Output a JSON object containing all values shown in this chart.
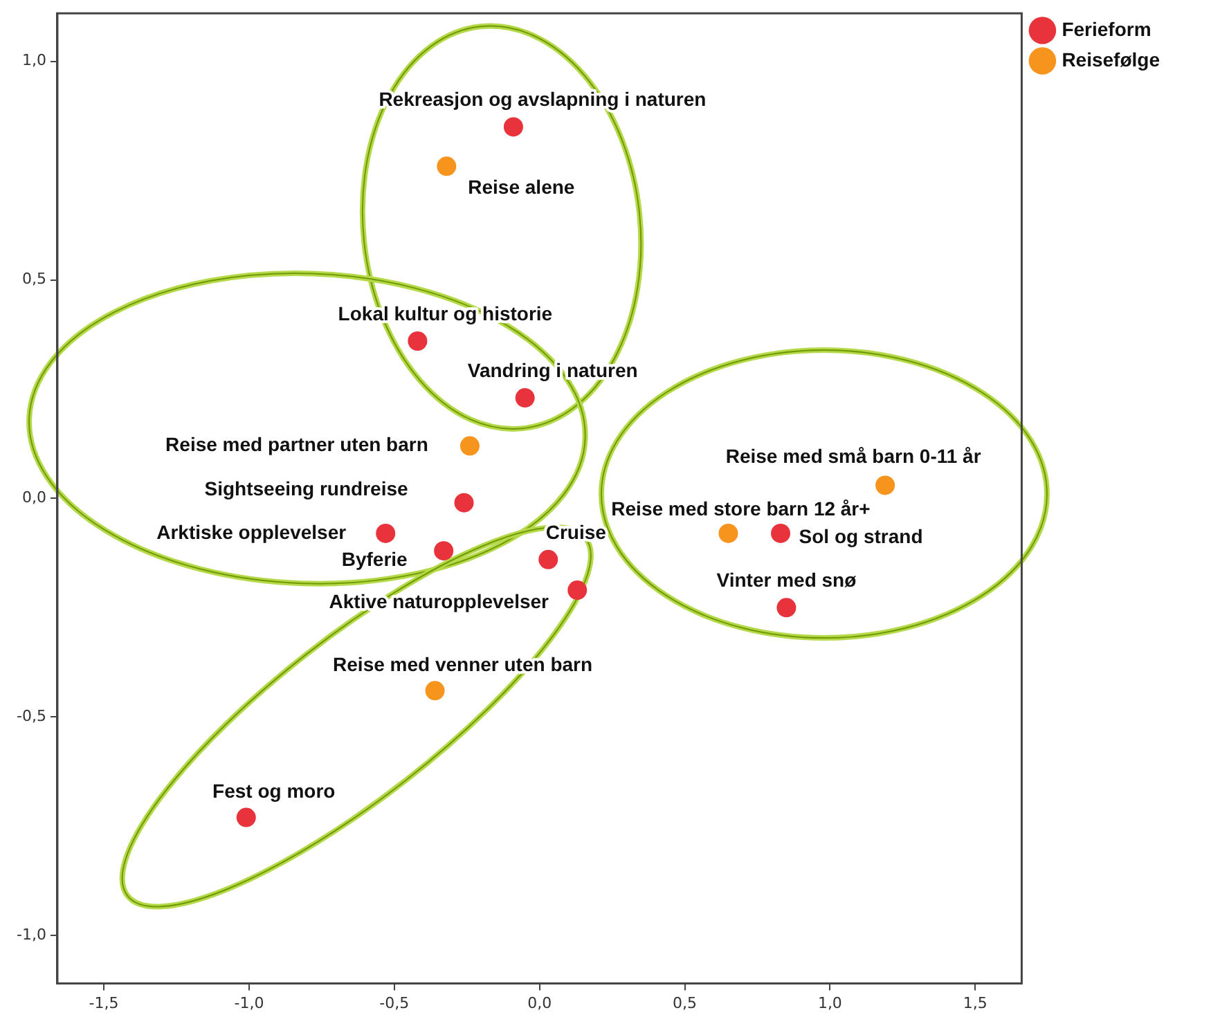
{
  "chart_data": {
    "type": "scatter",
    "series": [
      {
        "name": "Ferieform",
        "color": "#e8333c",
        "x": [
          -0.09,
          -0.42,
          -0.05,
          -0.26,
          -0.53,
          -0.33,
          0.03,
          0.13,
          -1.01,
          0.83,
          0.85
        ],
        "values": [
          0.85,
          0.36,
          0.23,
          -0.01,
          -0.08,
          -0.12,
          -0.14,
          -0.21,
          -0.73,
          -0.08,
          -0.25
        ]
      },
      {
        "name": "Reisefølge",
        "color": "#f7941d",
        "x": [
          -0.32,
          -0.24,
          -0.36,
          1.19,
          0.65
        ],
        "values": [
          0.76,
          0.12,
          -0.44,
          0.03,
          -0.08
        ]
      }
    ],
    "annotations": [
      {
        "text": "Rekreasjon og avslapning i naturen",
        "x": -0.09,
        "y": 0.85
      },
      {
        "text": "Lokal kultur og historie",
        "x": -0.42,
        "y": 0.36
      },
      {
        "text": "Vandring i naturen",
        "x": -0.05,
        "y": 0.23
      },
      {
        "text": "Sightseeing rundreise",
        "x": -0.26,
        "y": -0.01
      },
      {
        "text": "Arktiske opplevelser",
        "x": -0.53,
        "y": -0.08
      },
      {
        "text": "Byferie",
        "x": -0.33,
        "y": -0.12
      },
      {
        "text": "Cruise",
        "x": 0.03,
        "y": -0.14
      },
      {
        "text": "Aktive naturopplevelser",
        "x": 0.13,
        "y": -0.21
      },
      {
        "text": "Fest og moro",
        "x": -1.01,
        "y": -0.73
      },
      {
        "text": "Sol og strand",
        "x": 0.83,
        "y": -0.08
      },
      {
        "text": "Vinter med snø",
        "x": 0.85,
        "y": -0.25
      },
      {
        "text": "Reise alene",
        "x": -0.32,
        "y": 0.76
      },
      {
        "text": "Reise med partner uten barn",
        "x": -0.24,
        "y": 0.12
      },
      {
        "text": "Reise med venner uten barn",
        "x": -0.36,
        "y": -0.44
      },
      {
        "text": "Reise med små barn 0-11 år",
        "x": 1.19,
        "y": 0.03
      },
      {
        "text": "Reise med store barn 12 år+",
        "x": 0.65,
        "y": -0.08
      }
    ],
    "xlim": [
      -1.66,
      1.66
    ],
    "xticks": [
      {
        "value": -1.5,
        "label": "-1,5"
      },
      {
        "value": -1.0,
        "label": "-1,0"
      },
      {
        "value": -0.5,
        "label": "-0,5"
      },
      {
        "value": 0,
        "label": "0,0"
      },
      {
        "value": 0.5,
        "label": "0,5"
      },
      {
        "value": 1.0,
        "label": "1,0"
      },
      {
        "value": 1.5,
        "label": "1,5"
      }
    ],
    "ylim": [
      -1.11,
      1.11
    ],
    "yticks": [
      {
        "value": -1.0,
        "label": "-1,0"
      },
      {
        "value": -0.5,
        "label": "-0,5"
      },
      {
        "value": 0,
        "label": "0,0"
      },
      {
        "value": 0.5,
        "label": "0,5"
      },
      {
        "value": 1.0,
        "label": "1,0"
      }
    ],
    "grid": false,
    "legend": "top right",
    "marker": "circle"
  }
}
